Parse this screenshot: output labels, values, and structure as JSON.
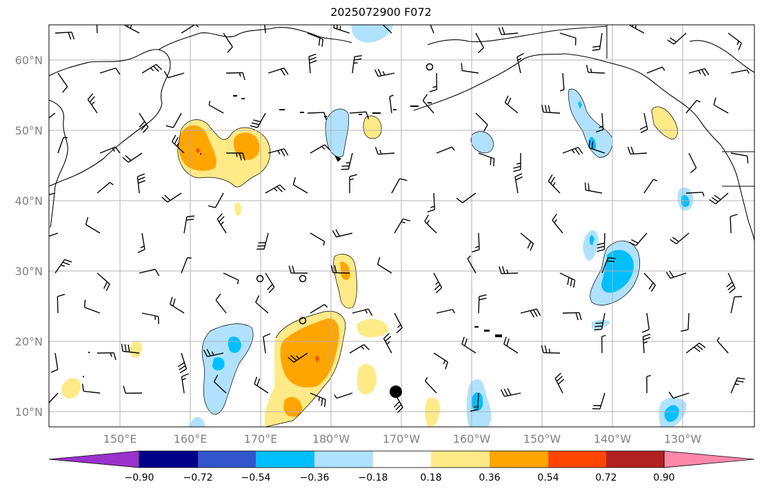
{
  "title": "2025072900 F072",
  "lon_labels": [
    "150°E",
    "160°E",
    "170°E",
    "180°W",
    "170°W",
    "160°W",
    "150°W",
    "140°W",
    "130°W"
  ],
  "lat_labels": [
    "60°N",
    "50°N",
    "40°N",
    "30°N",
    "20°N",
    "10°N"
  ],
  "colorbar": {
    "colors": [
      "#9933cc",
      "#000088",
      "#3355cc",
      "#00bfff",
      "#b0e2ff",
      "#ffffff",
      "#ffea88",
      "#ffa500",
      "#ff4500",
      "#b22222",
      "#ff88aa"
    ],
    "labels": [
      "−0.90",
      "−0.72",
      "−0.54",
      "−0.36",
      "−0.18",
      "0.18",
      "0.36",
      "0.54",
      "0.72",
      "0.90"
    ]
  },
  "map": {
    "grid_lines": true,
    "shading": [
      {
        "color": "#ffea88",
        "desc": "positive 0.18-0.36"
      },
      {
        "color": "#ffa500",
        "desc": "positive 0.36-0.54"
      },
      {
        "color": "#b0e2ff",
        "desc": "negative -0.18 to -0.36"
      },
      {
        "color": "#00bfff",
        "desc": "negative -0.36 to -0.54"
      }
    ],
    "wind_barbs": true,
    "station_markers": true
  }
}
